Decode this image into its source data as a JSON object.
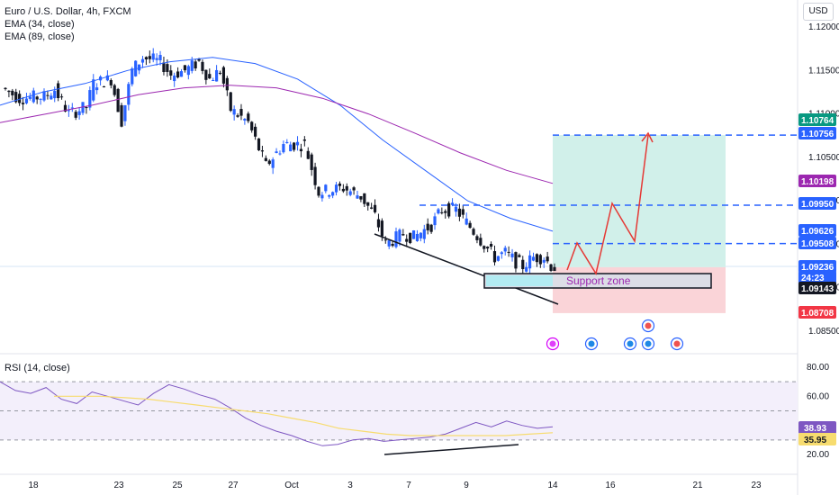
{
  "header": {
    "title": "Euro / U.S. Dollar, 4h, FXCM",
    "ema1": "EMA (34, close)",
    "ema2": "EMA (89, close)",
    "currency": "USD"
  },
  "rsi_panel": {
    "title": "RSI (14, close)"
  },
  "colors": {
    "bull": "#2962ff",
    "bear": "#131722",
    "ema34": "#2962ff",
    "ema89": "#9c27b0",
    "target_zone": "#d1f0ea",
    "stop_zone": "#fad4d8",
    "rsi_line": "#7e57c2",
    "rsi_ma": "#f7dc6f",
    "projection": "#e53935"
  },
  "chart_data": [
    {
      "type": "candlestick",
      "title": "Euro / U.S. Dollar, 4h, FXCM",
      "y_axis_ticks": [
        "1.12000",
        "1.11500",
        "1.11000",
        "1.10500",
        "1.10000",
        "1.09500",
        "1.09000",
        "1.08500"
      ],
      "x_axis_ticks": [
        "18",
        "23",
        "25",
        "27",
        "Oct",
        "3",
        "7",
        "9",
        "14",
        "16",
        "21",
        "23"
      ],
      "ylim": [
        1.0833,
        1.1233
      ],
      "x_range": [
        "Sep 18",
        "Oct 23"
      ],
      "series": [
        {
          "name": "EMA (34, close)",
          "values": [
            1.111,
            1.1125,
            1.1135,
            1.115,
            1.116,
            1.1165,
            1.1158,
            1.114,
            1.111,
            1.107,
            1.1035,
            1.1,
            1.098,
            1.0965
          ]
        },
        {
          "name": "EMA (89, close)",
          "values": [
            1.109,
            1.11,
            1.111,
            1.1122,
            1.113,
            1.1133,
            1.113,
            1.1118,
            1.11,
            1.1078,
            1.1055,
            1.1035,
            1.102
          ]
        }
      ],
      "price_levels": [
        {
          "label": "1.10764",
          "color": "#089981"
        },
        {
          "label": "1.10756",
          "color": "#2962ff",
          "dashed": true
        },
        {
          "label": "1.10198",
          "color": "#9c27b0"
        },
        {
          "label": "1.09950",
          "color": "#2962ff",
          "dashed": true
        },
        {
          "label": "1.09626",
          "color": "#2962ff"
        },
        {
          "label": "1.09508",
          "color": "#2962ff",
          "dashed": true
        },
        {
          "label": "1.09236",
          "color": "#2962ff"
        },
        {
          "label": "24:23",
          "color": "#2962ff"
        },
        {
          "label": "1.09143",
          "color": "#131722"
        },
        {
          "label": "1.08708",
          "color": "#f23645"
        }
      ],
      "annotations": [
        "Support zone"
      ]
    },
    {
      "type": "line",
      "title": "RSI (14, close)",
      "y_axis_ticks": [
        "80.00",
        "60.00",
        "40.00",
        "20.00"
      ],
      "ylim": [
        15,
        85
      ],
      "values": [
        70,
        64,
        62,
        66,
        58,
        55,
        63,
        60,
        57,
        54,
        62,
        68,
        65,
        61,
        58,
        52,
        45,
        40,
        36,
        33,
        29,
        26,
        27,
        30,
        31,
        29,
        30,
        31,
        32,
        34,
        38,
        42,
        39,
        43,
        40,
        38,
        39
      ],
      "rsi_ma": [
        60,
        60,
        60,
        59,
        58,
        56,
        54,
        52,
        50,
        48,
        45,
        42,
        38,
        36,
        34,
        33,
        33,
        33,
        33,
        33,
        34,
        35
      ],
      "price_levels": [
        {
          "label": "38.93",
          "color": "#7e57c2"
        },
        {
          "label": "35.95",
          "color": "#f7dc6f"
        }
      ]
    }
  ]
}
